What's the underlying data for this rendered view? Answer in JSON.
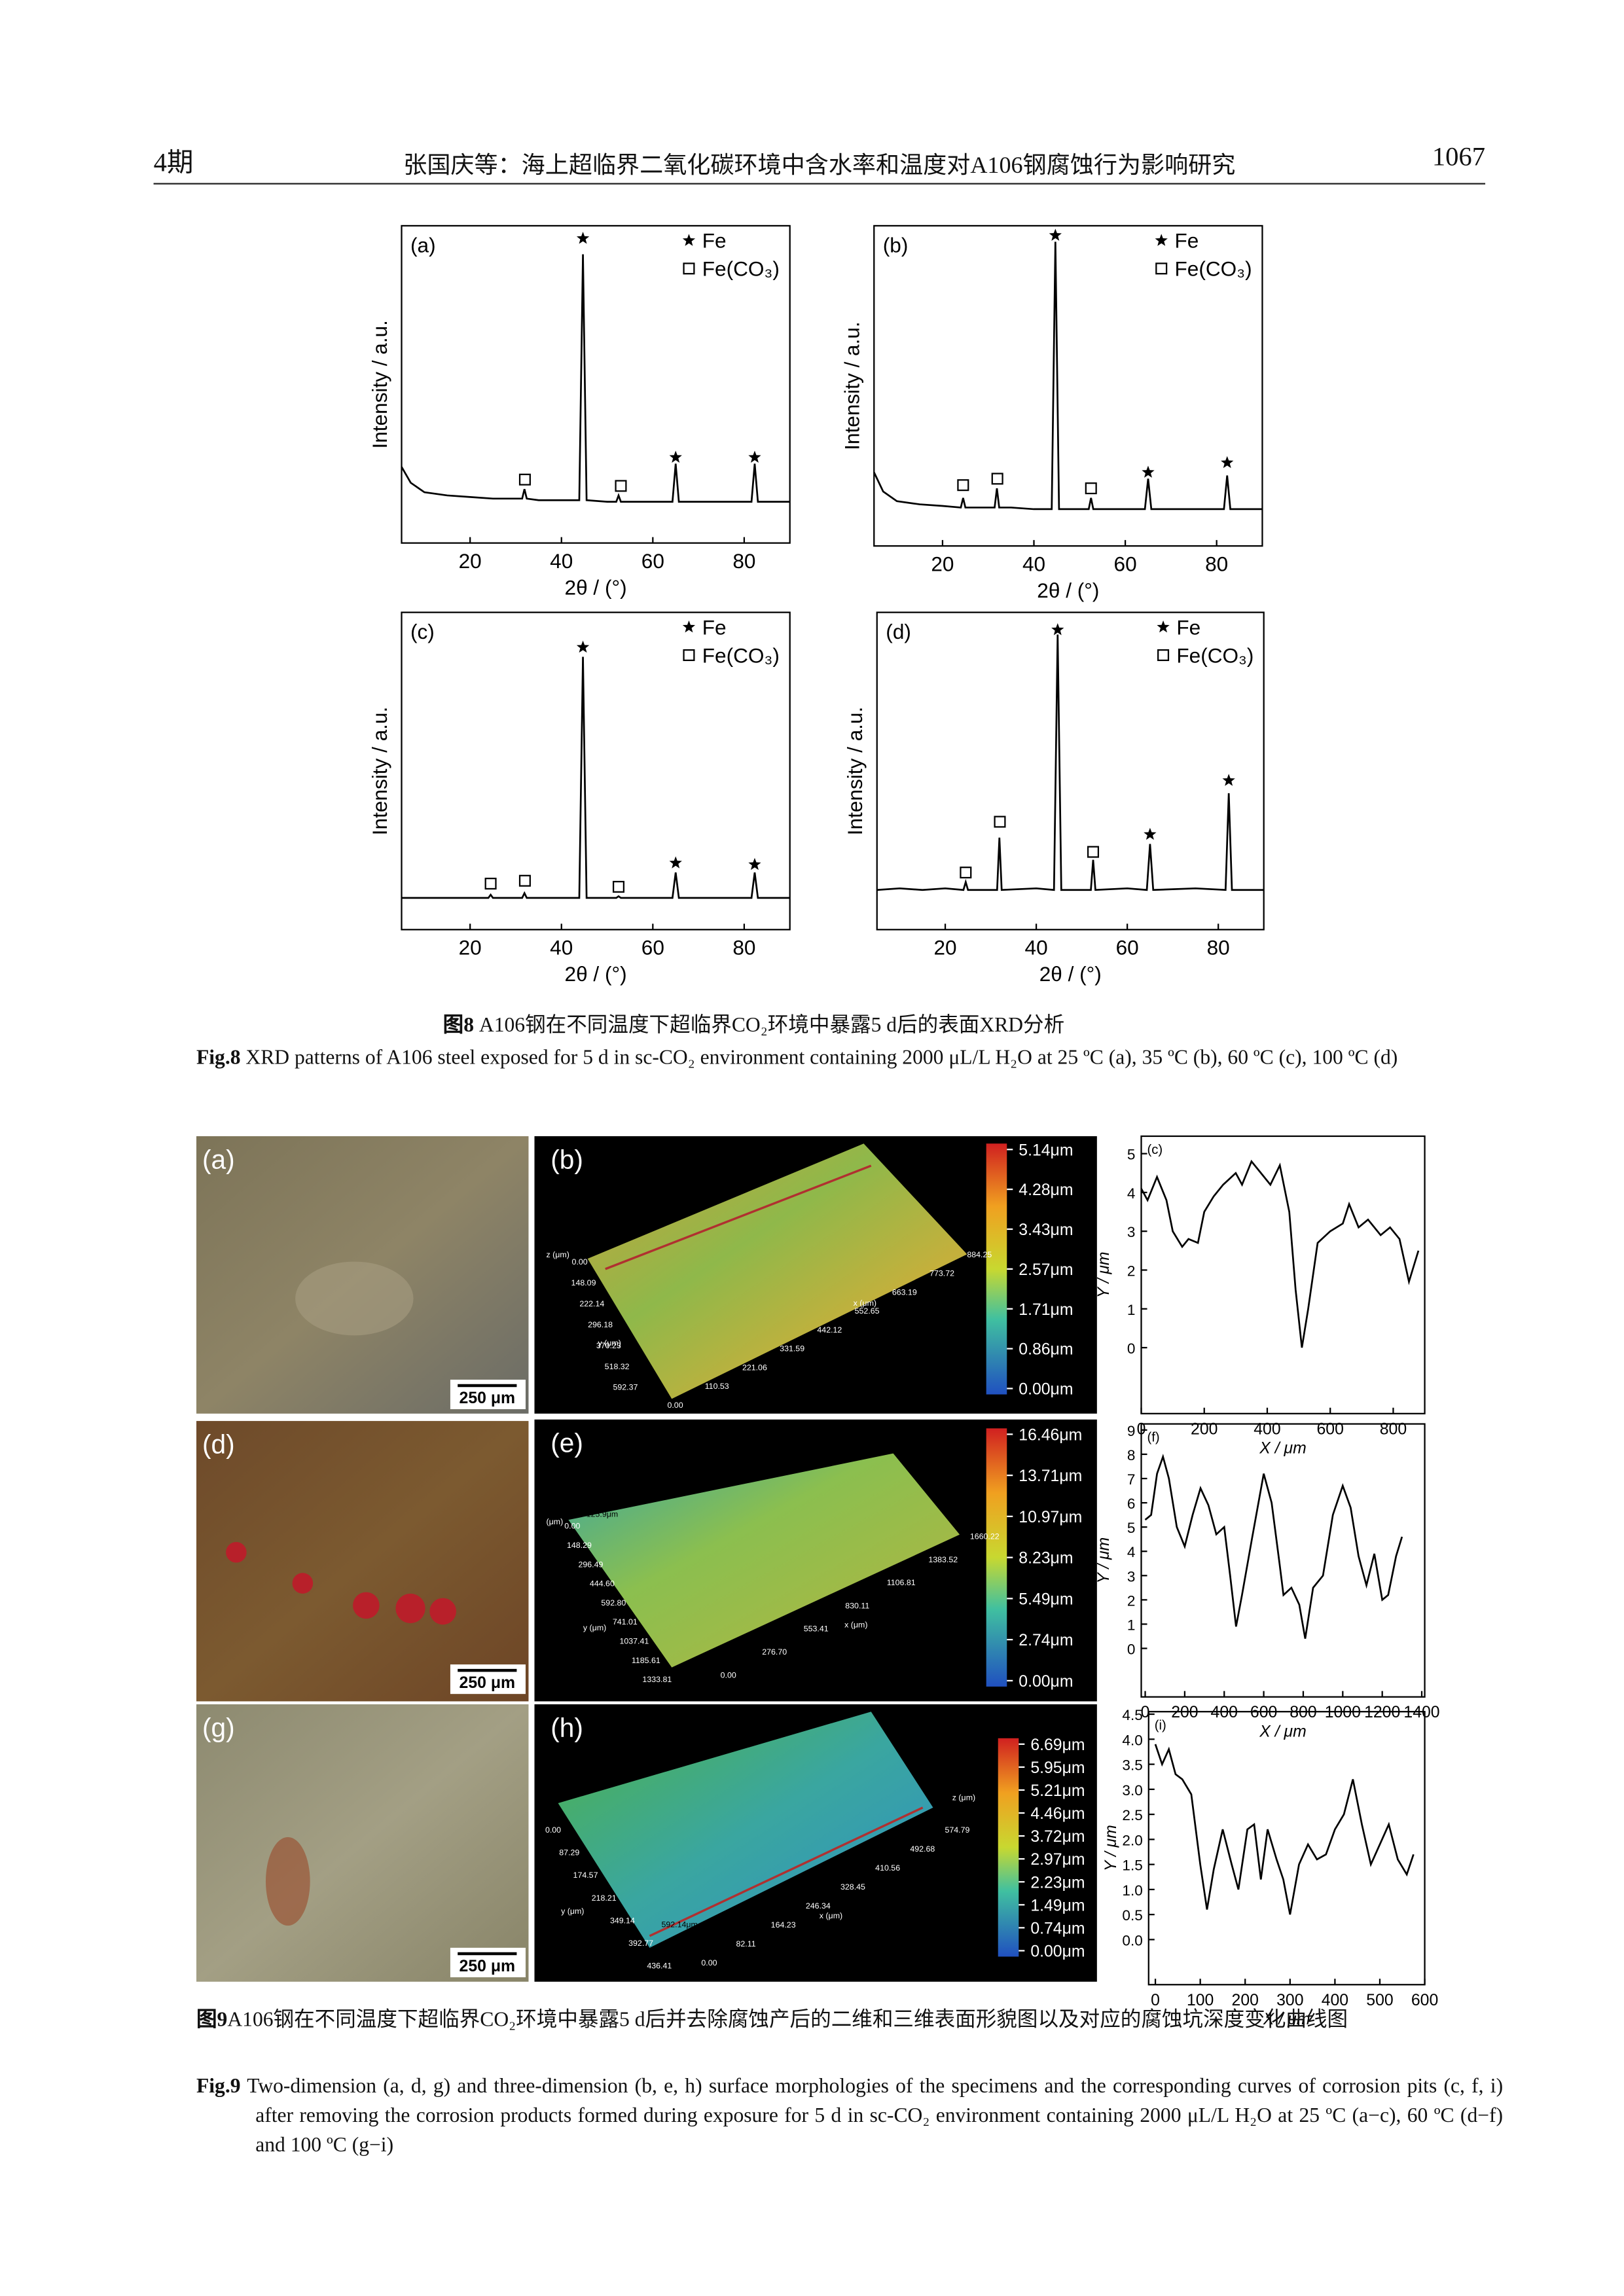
{
  "header": {
    "issue": "4期",
    "title": "张国庆等：海上超临界二氧化碳环境中含水率和温度对A106钢腐蚀行为影响研究",
    "page": "1067"
  },
  "figure8": {
    "caption_cn": {
      "label": "图8",
      "text": "A106钢在不同温度下超临界CO₂环境中暴露5 d后的表面XRD分析"
    },
    "caption_en": {
      "label": "Fig.8",
      "text": "XRD patterns of A106 steel exposed for 5 d in sc-CO₂ environment containing 2000 μL/L H₂O at 25 ºC (a), 35 ºC (b), 60 ºC (c), 100 ºC (d)"
    }
  },
  "figure9": {
    "photos": [
      {
        "panel": "(a)",
        "scale_bar": "250 μm"
      },
      {
        "panel": "(d)",
        "scale_bar": "250 μm"
      },
      {
        "panel": "(g)",
        "scale_bar": "250 μm"
      }
    ],
    "maps": [
      {
        "panel": "(b)",
        "z_label": "z (μm)",
        "y_label": "y (μm)",
        "x_label": "x (μm)",
        "y_ticks": [
          "0.00",
          "148.09",
          "222.14",
          "296.18",
          "370.23",
          "518.32",
          "592.37"
        ],
        "x_ticks": [
          "0.00",
          "110.53",
          "221.06",
          "331.59",
          "442.12",
          "552.65",
          "663.19",
          "773.72",
          "884.25"
        ],
        "colorbar": [
          "5.14μm",
          "4.28μm",
          "3.43μm",
          "2.57μm",
          "1.71μm",
          "0.86μm",
          "0.00μm"
        ]
      },
      {
        "panel": "(e)",
        "z_label": "(μm)",
        "y_label": "y (μm)",
        "x_label": "x (μm)",
        "marker_label": "*125.9μm",
        "y_ticks": [
          "0.00",
          "148.29",
          "296.49",
          "444.60",
          "592.80",
          "741.01",
          "1037.41",
          "1185.61",
          "1333.81"
        ],
        "x_ticks": [
          "0.00",
          "276.70",
          "553.41",
          "830.11",
          "1106.81",
          "1383.52",
          "1660.22"
        ],
        "colorbar": [
          "16.46μm",
          "13.71μm",
          "10.97μm",
          "8.23μm",
          "5.49μm",
          "2.74μm",
          "0.00μm"
        ]
      },
      {
        "panel": "(h)",
        "z_label": "z (μm)",
        "y_label": "y (μm)",
        "x_label": "x (μm)",
        "marker_label": "592.14μm",
        "y_ticks": [
          "0.00",
          "87.29",
          "174.57",
          "218.21",
          "349.14",
          "392.77",
          "436.41"
        ],
        "x_ticks": [
          "0.00",
          "82.11",
          "164.23",
          "246.34",
          "328.45",
          "410.56",
          "492.68",
          "574.79"
        ],
        "colorbar": [
          "6.69μm",
          "5.95μm",
          "5.21μm",
          "4.46μm",
          "3.72μm",
          "2.97μm",
          "2.23μm",
          "1.49μm",
          "0.74μm",
          "0.00μm"
        ]
      }
    ],
    "caption_cn": {
      "label": "图9",
      "text": "A106钢在不同温度下超临界CO₂环境中暴露5 d后并去除腐蚀产后的二维和三维表面形貌图以及对应的腐蚀坑深度变化曲线图"
    },
    "caption_en": {
      "label": "Fig.9",
      "text": "Two-dimension (a, d, g) and three-dimension (b, e, h) surface morphologies of the specimens and the corresponding curves of corrosion pits (c, f, i) after removing the corrosion products formed during exposure for 5 d in sc-CO₂ environment containing 2000 μL/L H₂O at 25 ºC (a−c), 60 ºC (d−f) and 100 ºC (g−i)"
    }
  },
  "chart_data": [
    {
      "type": "line",
      "panel": "(a)",
      "xlabel": "2θ / (°)",
      "ylabel": "Intensity / a.u.",
      "color": "#000000",
      "xlim": [
        5,
        90
      ],
      "ylim": [
        0,
        100
      ],
      "xticks": [
        20,
        40,
        60,
        80
      ],
      "x": [
        5,
        7,
        10,
        15,
        20,
        25,
        30,
        31.4,
        31.9,
        32.4,
        35,
        40,
        43.9,
        44.7,
        45.5,
        50,
        52,
        52.5,
        53,
        60,
        64.3,
        65,
        65.7,
        70,
        75,
        81.6,
        82.3,
        83,
        90
      ],
      "values": [
        24,
        19,
        16,
        15,
        14.5,
        14,
        14,
        14,
        17,
        14,
        13.5,
        13.5,
        13.5,
        91,
        13.5,
        13,
        13,
        15,
        13,
        13,
        13,
        25,
        13,
        13,
        13,
        13,
        25,
        13,
        13
      ],
      "markers": [
        {
          "name": "Fe",
          "symbol": "star",
          "x": [
            44.7,
            65,
            82.3
          ],
          "values": [
            96,
            27,
            27
          ]
        },
        {
          "name": "Fe(CO₃)",
          "symbol": "square",
          "x": [
            32,
            53
          ],
          "values": [
            20,
            18
          ]
        }
      ]
    },
    {
      "type": "line",
      "panel": "(b)",
      "xlabel": "2θ / (°)",
      "ylabel": "Intensity / a.u.",
      "color": "#000000",
      "xlim": [
        5,
        90
      ],
      "ylim": [
        0,
        100
      ],
      "xticks": [
        20,
        40,
        60,
        80
      ],
      "x": [
        5,
        7,
        10,
        15,
        20,
        24,
        24.5,
        25,
        30,
        31.4,
        31.9,
        32.4,
        35,
        40,
        43.9,
        44.7,
        45.5,
        50,
        52,
        52.5,
        53,
        60,
        64.3,
        65,
        65.7,
        70,
        75,
        81.6,
        82.3,
        83,
        90
      ],
      "values": [
        23,
        17,
        14,
        13,
        12.5,
        12,
        15,
        12,
        12,
        12,
        18,
        12,
        12,
        11.5,
        11.5,
        95,
        11.5,
        11.5,
        11.5,
        15,
        11.5,
        11.5,
        11.5,
        21,
        11.5,
        11.5,
        11.5,
        11.5,
        22,
        11.5,
        11.5
      ],
      "markers": [
        {
          "name": "Fe",
          "symbol": "star",
          "x": [
            44.7,
            65,
            82.3
          ],
          "values": [
            97,
            23,
            26
          ]
        },
        {
          "name": "Fe(CO₃)",
          "symbol": "square",
          "x": [
            24.5,
            32,
            52.5
          ],
          "values": [
            19,
            21,
            18
          ]
        }
      ]
    },
    {
      "type": "line",
      "panel": "(c)",
      "xlabel": "2θ / (°)",
      "ylabel": "Intensity / a.u.",
      "color": "#000000",
      "xlim": [
        5,
        90
      ],
      "ylim": [
        0,
        100
      ],
      "xticks": [
        20,
        40,
        60,
        80
      ],
      "x": [
        5,
        10,
        20,
        24,
        24.5,
        25,
        31.4,
        31.9,
        32.4,
        40,
        43.9,
        44.7,
        45.5,
        52,
        52.5,
        53,
        64.3,
        65,
        65.7,
        81.6,
        82.3,
        83,
        90
      ],
      "values": [
        10,
        10,
        10,
        10,
        11,
        10,
        10,
        11.5,
        10,
        10,
        10,
        86,
        10,
        10,
        10.5,
        10,
        10,
        18,
        10,
        10,
        18,
        10,
        10
      ],
      "markers": [
        {
          "name": "Fe",
          "symbol": "star",
          "x": [
            44.7,
            65,
            82.3
          ],
          "values": [
            89,
            21,
            20.5
          ]
        },
        {
          "name": "Fe(CO₃)",
          "symbol": "square",
          "x": [
            24.5,
            32,
            52.5
          ],
          "values": [
            14.5,
            15.4,
            13.5
          ]
        }
      ]
    },
    {
      "type": "line",
      "panel": "(d)",
      "xlabel": "2θ / (°)",
      "ylabel": "Intensity / a.u.",
      "color": "#000000",
      "xlim": [
        5,
        90
      ],
      "ylim": [
        0,
        100
      ],
      "xticks": [
        20,
        40,
        60,
        80
      ],
      "x": [
        5,
        10,
        15,
        20,
        24,
        24.5,
        25,
        31.4,
        31.9,
        32.4,
        40,
        43.9,
        44.7,
        45.5,
        52,
        52.5,
        53,
        60,
        64.3,
        65,
        65.7,
        75,
        81.6,
        82.3,
        83,
        90
      ],
      "values": [
        12.5,
        13,
        12.5,
        13,
        12.5,
        15,
        12.5,
        12.5,
        29,
        12.5,
        13,
        12.5,
        93,
        12.5,
        12.5,
        22,
        12.5,
        13,
        12.5,
        27,
        12.5,
        13,
        12.5,
        43,
        12.5,
        12.5
      ],
      "markers": [
        {
          "name": "Fe",
          "symbol": "star",
          "x": [
            44.7,
            65,
            82.3
          ],
          "values": [
            94.5,
            30,
            47
          ]
        },
        {
          "name": "Fe(CO₃)",
          "symbol": "square",
          "x": [
            24.5,
            32,
            52.5
          ],
          "values": [
            18,
            34,
            24.5
          ]
        }
      ]
    },
    {
      "type": "line",
      "panel": "(c)",
      "xlabel": "X / μm",
      "ylabel": "Y / μm",
      "color": "#000000",
      "xlim": [
        0,
        900
      ],
      "ylim": [
        -1.7,
        5.45
      ],
      "xticks": [
        0,
        200,
        400,
        600,
        800
      ],
      "yticks": [
        0,
        1,
        2,
        3,
        4,
        5
      ],
      "x": [
        0,
        20,
        50,
        80,
        100,
        130,
        150,
        180,
        200,
        230,
        260,
        300,
        320,
        350,
        380,
        410,
        440,
        470,
        490,
        510,
        530,
        560,
        600,
        640,
        660,
        690,
        720,
        760,
        790,
        820,
        850,
        880
      ],
      "values": [
        4.1,
        3.8,
        4.4,
        3.8,
        3.0,
        2.6,
        2.8,
        2.7,
        3.5,
        3.9,
        4.2,
        4.5,
        4.2,
        4.8,
        4.5,
        4.2,
        4.7,
        3.5,
        1.5,
        0.0,
        1.0,
        2.7,
        3.0,
        3.2,
        3.7,
        3.1,
        3.3,
        2.9,
        3.1,
        2.8,
        1.7,
        2.5
      ]
    },
    {
      "type": "line",
      "panel": "(f)",
      "xlabel": "X / μm",
      "ylabel": "Y / μm",
      "color": "#000000",
      "xlim": [
        -20,
        1415
      ],
      "ylim": [
        -2,
        9.25
      ],
      "xticks": [
        0,
        200,
        400,
        600,
        800,
        1000,
        1200,
        1400
      ],
      "yticks": [
        0,
        1,
        2,
        3,
        4,
        5,
        6,
        7,
        8,
        9
      ],
      "x": [
        0,
        30,
        60,
        90,
        120,
        160,
        200,
        240,
        280,
        320,
        360,
        400,
        430,
        460,
        490,
        540,
        600,
        640,
        680,
        700,
        740,
        780,
        810,
        850,
        900,
        950,
        1000,
        1040,
        1080,
        1120,
        1160,
        1200,
        1230,
        1270,
        1300
      ],
      "values": [
        5.3,
        5.5,
        7.2,
        7.9,
        7,
        5,
        4.2,
        5.5,
        6.6,
        5.9,
        4.7,
        5.0,
        3,
        0.9,
        2.2,
        4.5,
        7.2,
        6,
        3.5,
        2.2,
        2.5,
        1.8,
        0.4,
        2.5,
        3,
        5.5,
        6.7,
        5.8,
        3.8,
        2.6,
        3.9,
        2.0,
        2.2,
        3.8,
        4.6
      ]
    },
    {
      "type": "line",
      "panel": "(i)",
      "xlabel": "X / μm",
      "ylabel": "Y / μm",
      "color": "#000000",
      "xlim": [
        -15,
        600
      ],
      "ylim": [
        -0.9,
        4.55
      ],
      "xticks": [
        0,
        100,
        200,
        300,
        400,
        500,
        600
      ],
      "yticks": [
        {
          "value": 0,
          "label": "0.0"
        },
        0.5,
        {
          "value": 1,
          "label": "1.0"
        },
        1.5,
        {
          "value": 2,
          "label": "2.0"
        },
        2.5,
        {
          "value": 3,
          "label": "3.0"
        },
        3.5,
        {
          "value": 4,
          "label": "4.0"
        },
        4.5
      ],
      "x": [
        0,
        15,
        30,
        45,
        60,
        80,
        100,
        115,
        130,
        150,
        170,
        185,
        205,
        220,
        235,
        250,
        270,
        285,
        300,
        320,
        340,
        360,
        380,
        400,
        420,
        440,
        460,
        480,
        500,
        520,
        540,
        560,
        575
      ],
      "values": [
        3.9,
        3.5,
        3.8,
        3.3,
        3.2,
        2.9,
        1.5,
        0.6,
        1.4,
        2.2,
        1.5,
        1.0,
        2.2,
        2.3,
        1.2,
        2.2,
        1.6,
        1.2,
        0.5,
        1.5,
        1.9,
        1.6,
        1.7,
        2.2,
        2.5,
        3.2,
        2.3,
        1.5,
        1.9,
        2.3,
        1.6,
        1.3,
        1.7
      ]
    }
  ]
}
